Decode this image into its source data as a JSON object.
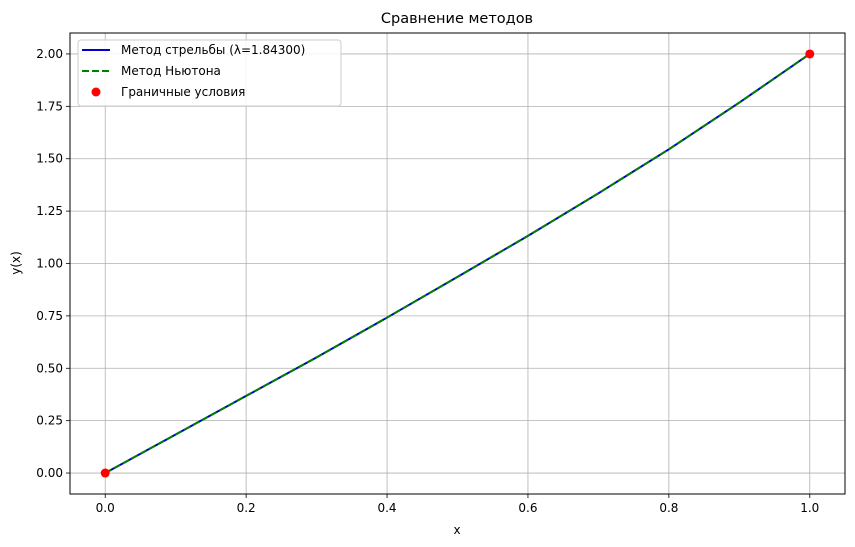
{
  "chart_data": {
    "type": "line",
    "title": "Сравнение методов",
    "xlabel": "x",
    "ylabel": "y(x)",
    "xlim": [
      -0.05,
      1.05
    ],
    "ylim": [
      -0.1,
      2.1
    ],
    "xticks": [
      0.0,
      0.2,
      0.4,
      0.6,
      0.8,
      1.0
    ],
    "xtick_labels": [
      "0.0",
      "0.2",
      "0.4",
      "0.6",
      "0.8",
      "1.0"
    ],
    "yticks": [
      0.0,
      0.25,
      0.5,
      0.75,
      1.0,
      1.25,
      1.5,
      1.75,
      2.0
    ],
    "ytick_labels": [
      "0.00",
      "0.25",
      "0.50",
      "0.75",
      "1.00",
      "1.25",
      "1.50",
      "1.75",
      "2.00"
    ],
    "grid": true,
    "legend_position": "top-left",
    "series": [
      {
        "name": "Метод стрельбы (λ=1.84300)",
        "style": "solid",
        "color": "#0000cc",
        "x": [
          0.0,
          0.1,
          0.2,
          0.3,
          0.4,
          0.5,
          0.6,
          0.7,
          0.8,
          0.9,
          1.0
        ],
        "y": [
          0.0,
          0.184,
          0.368,
          0.552,
          0.742,
          0.936,
          1.132,
          1.335,
          1.545,
          1.768,
          2.0
        ]
      },
      {
        "name": "Метод Ньютона",
        "style": "dashed",
        "color": "#008000",
        "x": [
          0.0,
          0.1,
          0.2,
          0.3,
          0.4,
          0.5,
          0.6,
          0.7,
          0.8,
          0.9,
          1.0
        ],
        "y": [
          0.0,
          0.184,
          0.368,
          0.552,
          0.742,
          0.936,
          1.132,
          1.335,
          1.545,
          1.768,
          2.0
        ]
      },
      {
        "name": "Граничные условия",
        "style": "points",
        "color": "#ff0000",
        "x": [
          0.0,
          1.0
        ],
        "y": [
          0.0,
          2.0
        ]
      }
    ]
  }
}
